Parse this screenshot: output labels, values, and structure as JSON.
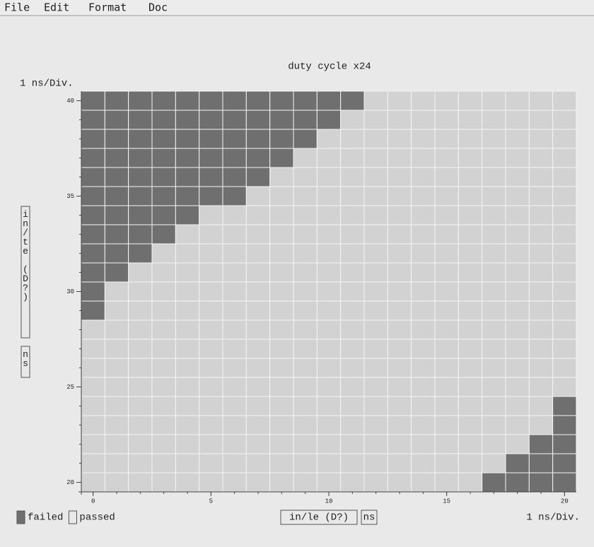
{
  "menu": [
    "File",
    "Edit",
    "Format",
    "Doc"
  ],
  "chart_data": {
    "type": "shmoo",
    "title": "duty cycle x24",
    "y_scale_label": "1 ns/Div.",
    "x_scale_label": "1 ns/Div.",
    "x_label": "in/le (D?)",
    "x_unit": "ns",
    "y_label": "in/te (D?)",
    "y_unit": "ns",
    "x": [
      0,
      1,
      2,
      3,
      4,
      5,
      6,
      7,
      8,
      9,
      10,
      11,
      12,
      13,
      14,
      15,
      16,
      17,
      18,
      19,
      20
    ],
    "y": [
      20,
      21,
      22,
      23,
      24,
      25,
      26,
      27,
      28,
      29,
      30,
      31,
      32,
      33,
      34,
      35,
      36,
      37,
      38,
      39,
      40
    ],
    "values": [
      [
        0,
        0,
        0,
        0,
        0,
        0,
        0,
        0,
        0,
        0,
        0,
        0,
        0,
        0,
        0,
        0,
        0,
        1,
        1,
        1,
        1
      ],
      [
        0,
        0,
        0,
        0,
        0,
        0,
        0,
        0,
        0,
        0,
        0,
        0,
        0,
        0,
        0,
        0,
        0,
        0,
        1,
        1,
        1
      ],
      [
        0,
        0,
        0,
        0,
        0,
        0,
        0,
        0,
        0,
        0,
        0,
        0,
        0,
        0,
        0,
        0,
        0,
        0,
        0,
        1,
        1
      ],
      [
        0,
        0,
        0,
        0,
        0,
        0,
        0,
        0,
        0,
        0,
        0,
        0,
        0,
        0,
        0,
        0,
        0,
        0,
        0,
        0,
        1
      ],
      [
        0,
        0,
        0,
        0,
        0,
        0,
        0,
        0,
        0,
        0,
        0,
        0,
        0,
        0,
        0,
        0,
        0,
        0,
        0,
        0,
        1
      ],
      [
        0,
        0,
        0,
        0,
        0,
        0,
        0,
        0,
        0,
        0,
        0,
        0,
        0,
        0,
        0,
        0,
        0,
        0,
        0,
        0,
        0
      ],
      [
        0,
        0,
        0,
        0,
        0,
        0,
        0,
        0,
        0,
        0,
        0,
        0,
        0,
        0,
        0,
        0,
        0,
        0,
        0,
        0,
        0
      ],
      [
        0,
        0,
        0,
        0,
        0,
        0,
        0,
        0,
        0,
        0,
        0,
        0,
        0,
        0,
        0,
        0,
        0,
        0,
        0,
        0,
        0
      ],
      [
        0,
        0,
        0,
        0,
        0,
        0,
        0,
        0,
        0,
        0,
        0,
        0,
        0,
        0,
        0,
        0,
        0,
        0,
        0,
        0,
        0
      ],
      [
        1,
        0,
        0,
        0,
        0,
        0,
        0,
        0,
        0,
        0,
        0,
        0,
        0,
        0,
        0,
        0,
        0,
        0,
        0,
        0,
        0
      ],
      [
        1,
        0,
        0,
        0,
        0,
        0,
        0,
        0,
        0,
        0,
        0,
        0,
        0,
        0,
        0,
        0,
        0,
        0,
        0,
        0,
        0
      ],
      [
        1,
        1,
        0,
        0,
        0,
        0,
        0,
        0,
        0,
        0,
        0,
        0,
        0,
        0,
        0,
        0,
        0,
        0,
        0,
        0,
        0
      ],
      [
        1,
        1,
        1,
        0,
        0,
        0,
        0,
        0,
        0,
        0,
        0,
        0,
        0,
        0,
        0,
        0,
        0,
        0,
        0,
        0,
        0
      ],
      [
        1,
        1,
        1,
        1,
        0,
        0,
        0,
        0,
        0,
        0,
        0,
        0,
        0,
        0,
        0,
        0,
        0,
        0,
        0,
        0,
        0
      ],
      [
        1,
        1,
        1,
        1,
        1,
        0,
        0,
        0,
        0,
        0,
        0,
        0,
        0,
        0,
        0,
        0,
        0,
        0,
        0,
        0,
        0
      ],
      [
        1,
        1,
        1,
        1,
        1,
        1,
        1,
        0,
        0,
        0,
        0,
        0,
        0,
        0,
        0,
        0,
        0,
        0,
        0,
        0,
        0
      ],
      [
        1,
        1,
        1,
        1,
        1,
        1,
        1,
        1,
        0,
        0,
        0,
        0,
        0,
        0,
        0,
        0,
        0,
        0,
        0,
        0,
        0
      ],
      [
        1,
        1,
        1,
        1,
        1,
        1,
        1,
        1,
        1,
        0,
        0,
        0,
        0,
        0,
        0,
        0,
        0,
        0,
        0,
        0,
        0
      ],
      [
        1,
        1,
        1,
        1,
        1,
        1,
        1,
        1,
        1,
        1,
        0,
        0,
        0,
        0,
        0,
        0,
        0,
        0,
        0,
        0,
        0
      ],
      [
        1,
        1,
        1,
        1,
        1,
        1,
        1,
        1,
        1,
        1,
        1,
        0,
        0,
        0,
        0,
        0,
        0,
        0,
        0,
        0,
        0
      ],
      [
        1,
        1,
        1,
        1,
        1,
        1,
        1,
        1,
        1,
        1,
        1,
        1,
        0,
        0,
        0,
        0,
        0,
        0,
        0,
        0,
        0
      ]
    ],
    "legend": [
      {
        "name": "failed",
        "value": 1,
        "color": "#6f6f6f"
      },
      {
        "name": "passed",
        "value": 0,
        "color": "#d2d2d2"
      }
    ],
    "xlim": [
      -0.5,
      20.5
    ],
    "xticks": [
      0,
      5,
      10,
      15,
      20
    ],
    "ylim": [
      19.5,
      40.5
    ],
    "yticks": [
      20,
      25,
      30,
      35,
      40
    ]
  }
}
